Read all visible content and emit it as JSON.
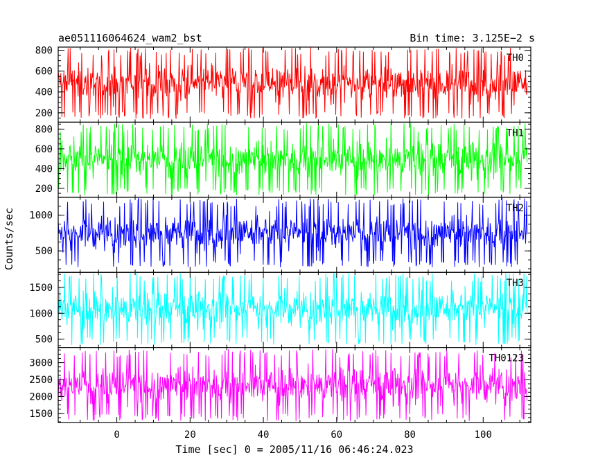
{
  "chart_data": {
    "type": "line",
    "title": "ae051116064624_wam2_bst",
    "subtitle": "Bin time: 3.125E−2 s",
    "xlabel": "Time [sec] 0 = 2005/11/16 06:46:24.023",
    "ylabel": "Counts/sec",
    "xlim": [
      -16,
      113
    ],
    "x_ticks": [
      0,
      20,
      40,
      60,
      80,
      100
    ],
    "x_tick_labels": [
      "0",
      "20",
      "40",
      "60",
      "80",
      "100"
    ],
    "x_range_data": [
      -16,
      112
    ],
    "bin_time": 0.03125,
    "grid": false,
    "panels": [
      {
        "name": "TH0",
        "color": "#ff0000",
        "ylim": [
          110,
          830
        ],
        "y_ticks": [
          200,
          400,
          600,
          800
        ],
        "typical_range": [
          140,
          830
        ],
        "mean": 390
      },
      {
        "name": "TH1",
        "color": "#00ff00",
        "ylim": [
          110,
          870
        ],
        "y_ticks": [
          200,
          400,
          600,
          800
        ],
        "typical_range": [
          130,
          860
        ],
        "mean": 390
      },
      {
        "name": "TH2",
        "color": "#0000ff",
        "ylim": [
          200,
          1250
        ],
        "y_ticks": [
          500,
          1000
        ],
        "typical_range": [
          270,
          1240
        ],
        "mean": 650
      },
      {
        "name": "TH3",
        "color": "#00ffff",
        "ylim": [
          340,
          1790
        ],
        "y_ticks": [
          500,
          1000,
          1500
        ],
        "typical_range": [
          390,
          1790
        ],
        "mean": 1000
      },
      {
        "name": "TH0123",
        "color": "#ff00ff",
        "ylim": [
          1230,
          3450
        ],
        "y_ticks": [
          1500,
          2000,
          2500,
          3000
        ],
        "typical_range": [
          1270,
          3400
        ],
        "mean": 2250
      }
    ]
  }
}
